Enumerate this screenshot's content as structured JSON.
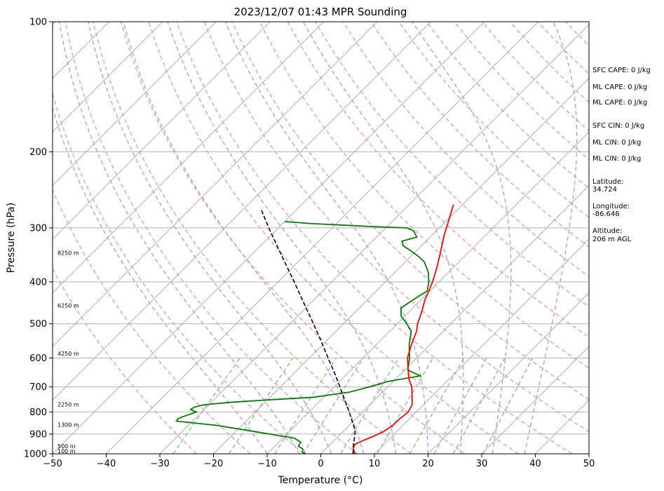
{
  "chart_data": {
    "type": "line",
    "title": "2023/12/07 01:43 MPR Sounding",
    "xlabel": "Temperature (°C)",
    "ylabel": "Pressure (hPa)",
    "xlim": [
      -50,
      50
    ],
    "ylim": [
      1000,
      100
    ],
    "y_scale": "log",
    "grid": true,
    "x_ticks": [
      -50,
      -40,
      -30,
      -20,
      -10,
      0,
      10,
      20,
      30,
      40,
      50
    ],
    "y_ticks": [
      100,
      200,
      300,
      400,
      500,
      600,
      700,
      800,
      900,
      1000
    ],
    "temperature": {
      "color": "#ff0000",
      "points": [
        [
          1000,
          6.4
        ],
        [
          990,
          5.9
        ],
        [
          970,
          5.0
        ],
        [
          950,
          4.6
        ],
        [
          930,
          5.5
        ],
        [
          910,
          6.6
        ],
        [
          890,
          7.5
        ],
        [
          860,
          8.1
        ],
        [
          830,
          8.2
        ],
        [
          800,
          8.5
        ],
        [
          770,
          7.9
        ],
        [
          740,
          6.5
        ],
        [
          700,
          4.5
        ],
        [
          670,
          2.4
        ],
        [
          640,
          0.7
        ],
        [
          600,
          -1.7
        ],
        [
          560,
          -3.4
        ],
        [
          520,
          -5.0
        ],
        [
          500,
          -6.2
        ],
        [
          470,
          -7.6
        ],
        [
          440,
          -9.3
        ],
        [
          420,
          -10.2
        ],
        [
          400,
          -11.2
        ],
        [
          370,
          -13.1
        ],
        [
          350,
          -14.6
        ],
        [
          330,
          -16.2
        ],
        [
          310,
          -17.9
        ],
        [
          290,
          -19.5
        ],
        [
          275,
          -20.8
        ],
        [
          265,
          -21.7
        ]
      ]
    },
    "dewpoint": {
      "color": "#008000",
      "points": [
        [
          1000,
          -2.8
        ],
        [
          990,
          -3.8
        ],
        [
          975,
          -4.2
        ],
        [
          960,
          -5.6
        ],
        [
          940,
          -5.9
        ],
        [
          920,
          -7.8
        ],
        [
          890,
          -16.0
        ],
        [
          860,
          -24.5
        ],
        [
          840,
          -33.0
        ],
        [
          830,
          -33.2
        ],
        [
          820,
          -32.6
        ],
        [
          800,
          -31.0
        ],
        [
          790,
          -32.5
        ],
        [
          780,
          -32.3
        ],
        [
          770,
          -31.0
        ],
        [
          760,
          -26.4
        ],
        [
          750,
          -19.8
        ],
        [
          740,
          -12.0
        ],
        [
          720,
          -6.2
        ],
        [
          700,
          -3.4
        ],
        [
          680,
          -1.0
        ],
        [
          660,
          4.0
        ],
        [
          640,
          0.6
        ],
        [
          600,
          -1.3
        ],
        [
          560,
          -3.8
        ],
        [
          520,
          -6.0
        ],
        [
          500,
          -8.2
        ],
        [
          480,
          -10.7
        ],
        [
          460,
          -12.2
        ],
        [
          440,
          -11.5
        ],
        [
          420,
          -10.5
        ],
        [
          400,
          -11.9
        ],
        [
          380,
          -13.8
        ],
        [
          360,
          -16.4
        ],
        [
          350,
          -18.4
        ],
        [
          340,
          -20.8
        ],
        [
          330,
          -23.4
        ],
        [
          322,
          -24.5
        ],
        [
          315,
          -22.5
        ],
        [
          305,
          -24.2
        ],
        [
          300,
          -26.0
        ],
        [
          298,
          -32.5
        ],
        [
          293,
          -45.0
        ],
        [
          290,
          -50.0
        ]
      ]
    },
    "parcel": {
      "color": "#000000",
      "points": [
        [
          1000,
          6.0
        ],
        [
          950,
          4.3
        ],
        [
          900,
          2.7
        ],
        [
          880,
          1.9
        ],
        [
          850,
          0.3
        ],
        [
          800,
          -2.5
        ],
        [
          750,
          -5.6
        ],
        [
          700,
          -8.9
        ],
        [
          650,
          -12.5
        ],
        [
          600,
          -16.5
        ],
        [
          550,
          -20.8
        ],
        [
          500,
          -25.6
        ],
        [
          450,
          -31.0
        ],
        [
          400,
          -37.0
        ],
        [
          350,
          -43.9
        ],
        [
          300,
          -51.8
        ],
        [
          270,
          -57.0
        ]
      ]
    },
    "height_labels": [
      {
        "pressure": 1000,
        "text": "100 m"
      },
      {
        "pressure": 975,
        "text": "500 m"
      },
      {
        "pressure": 870,
        "text": "1300 m"
      },
      {
        "pressure": 780,
        "text": "2250 m"
      },
      {
        "pressure": 595,
        "text": "4250 m"
      },
      {
        "pressure": 460,
        "text": "6250 m"
      },
      {
        "pressure": 348,
        "text": "8250 m"
      }
    ]
  },
  "info_panel": {
    "sfc_cape": "SFC CAPE: 0 J/kg",
    "ml_cape_1": "ML CAPE: 0 J/kg",
    "ml_cape_2": "ML CAPE: 0 J/kg",
    "sfc_cin": "SFC CIN: 0 J/kg",
    "ml_cin_1": "ML CIN: 0 J/kg",
    "ml_cin_2": "ML CIN: 0 J/kg",
    "latitude_label": "Latitude:",
    "latitude_value": "34.724",
    "longitude_label": "Longitude:",
    "longitude_value": "-86.646",
    "altitude_label": "Altitude:",
    "altitude_value": "206 m AGL"
  },
  "colors": {
    "isotherm": "#b0b0b0",
    "isobar": "#b0b0b0",
    "dry_adiabat": "#ff9a9a",
    "moist_adiabat": "#a9a0f2",
    "mixing_ratio": "#7fbf7f",
    "frame": "#000000"
  }
}
